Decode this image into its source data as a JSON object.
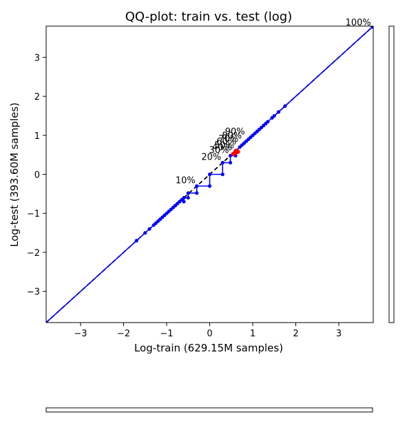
{
  "chart_data": {
    "type": "line",
    "title": "QQ-plot: train vs. test (log)",
    "xlabel": "Log-train (629.15M samples)",
    "ylabel": "Log-test (393.60M samples)",
    "xlim": [
      -3.8,
      3.8
    ],
    "ylim": [
      -3.8,
      3.8
    ],
    "xticks": [
      -3,
      -2,
      -1,
      0,
      1,
      2,
      3
    ],
    "yticks": [
      -3,
      -2,
      -1,
      0,
      1,
      2,
      3
    ],
    "grid": false,
    "reference_line": {
      "style": "dashed",
      "color": "#000000",
      "from": [
        -3.8,
        -3.8
      ],
      "to": [
        3.8,
        3.8
      ]
    },
    "series": [
      {
        "color": "#0000ff",
        "x": [
          -3.8,
          -1.7,
          -1.5,
          -1.4,
          -1.3,
          -1.25,
          -1.2,
          -1.15,
          -1.1,
          -1.05,
          -1.0,
          -0.95,
          -0.9,
          -0.85,
          -0.8,
          -0.75,
          -0.7,
          -0.65,
          -0.6,
          -0.6,
          -0.5,
          -0.5,
          -0.3,
          -0.3,
          0.0,
          0.0,
          0.3,
          0.3,
          0.48,
          0.48,
          0.6,
          0.6,
          0.7,
          0.75,
          0.8,
          0.85,
          0.9,
          0.95,
          1.0,
          1.05,
          1.1,
          1.15,
          1.2,
          1.25,
          1.3,
          1.35,
          1.45,
          1.5,
          1.6,
          1.75,
          3.78
        ],
        "y": [
          -3.8,
          -1.7,
          -1.5,
          -1.4,
          -1.3,
          -1.25,
          -1.2,
          -1.15,
          -1.1,
          -1.05,
          -1.0,
          -0.95,
          -0.9,
          -0.85,
          -0.8,
          -0.75,
          -0.7,
          -0.65,
          -0.7,
          -0.6,
          -0.6,
          -0.48,
          -0.48,
          -0.3,
          -0.3,
          0.0,
          0.0,
          0.3,
          0.3,
          0.48,
          0.48,
          0.6,
          0.7,
          0.75,
          0.8,
          0.85,
          0.9,
          0.95,
          1.0,
          1.05,
          1.1,
          1.15,
          1.2,
          1.25,
          1.3,
          1.35,
          1.45,
          1.5,
          1.6,
          1.75,
          3.78
        ]
      }
    ],
    "highlight_points": {
      "color": "#ff0000",
      "x": [
        0.55,
        0.6,
        0.62,
        0.65
      ],
      "y": [
        0.52,
        0.57,
        0.6,
        0.58
      ]
    },
    "percentile_labels": [
      {
        "text": "10%",
        "x": -0.3,
        "y": -0.3
      },
      {
        "text": "20%",
        "x": 0.3,
        "y": 0.3
      },
      {
        "text": "30%",
        "x": 0.48,
        "y": 0.48
      },
      {
        "text": "40%",
        "x": 0.55,
        "y": 0.55
      },
      {
        "text": "50%",
        "x": 0.6,
        "y": 0.6
      },
      {
        "text": "60%",
        "x": 0.65,
        "y": 0.7
      },
      {
        "text": "70%",
        "x": 0.7,
        "y": 0.77
      },
      {
        "text": "80%",
        "x": 0.78,
        "y": 0.85
      },
      {
        "text": "90%",
        "x": 0.85,
        "y": 0.95
      },
      {
        "text": "100%",
        "x": 3.78,
        "y": 3.78
      }
    ]
  }
}
